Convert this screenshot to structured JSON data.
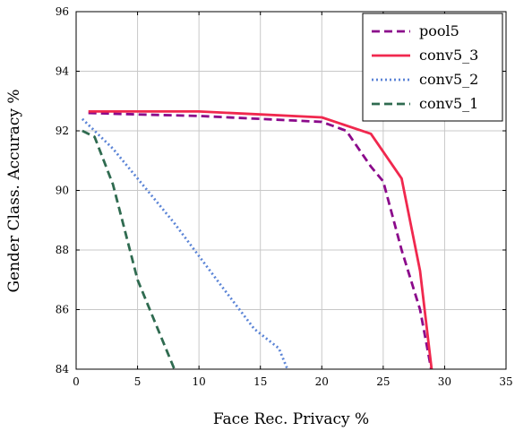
{
  "chart_data": {
    "type": "line",
    "title": "",
    "xlabel": "Face Rec. Privacy %",
    "ylabel": "Gender Class. Accuracy %",
    "xlim": [
      0,
      35
    ],
    "ylim": [
      84,
      96
    ],
    "xticks": [
      0,
      5,
      10,
      15,
      20,
      25,
      30,
      35
    ],
    "yticks": [
      84,
      86,
      88,
      90,
      92,
      94,
      96
    ],
    "grid": true,
    "legend_position": "top-right",
    "series": [
      {
        "name": "pool5",
        "color": "#8b0a8b",
        "dash": "dashed",
        "x": [
          1.0,
          5.0,
          10.0,
          15.0,
          20.0,
          22.0,
          24.0,
          25.0,
          26.5,
          28.0,
          29.0
        ],
        "y": [
          92.6,
          92.55,
          92.5,
          92.4,
          92.3,
          92.0,
          90.8,
          90.3,
          88.0,
          86.0,
          83.8
        ]
      },
      {
        "name": "conv5_3",
        "color": "#f0284e",
        "dash": "solid",
        "x": [
          1.0,
          5.0,
          10.0,
          15.0,
          20.0,
          24.0,
          26.5,
          28.0,
          29.0
        ],
        "y": [
          92.65,
          92.65,
          92.65,
          92.55,
          92.45,
          91.9,
          90.4,
          87.3,
          83.8
        ]
      },
      {
        "name": "conv5_2",
        "color": "#5b84d6",
        "dash": "dotted",
        "x": [
          0.5,
          3.0,
          5.0,
          8.0,
          10.0,
          12.0,
          14.5,
          16.5,
          17.3
        ],
        "y": [
          92.4,
          91.4,
          90.4,
          88.9,
          87.8,
          86.7,
          85.35,
          84.7,
          83.9
        ]
      },
      {
        "name": "conv5_1",
        "color": "#2f6b50",
        "dash": "dashed",
        "x": [
          0.5,
          1.5,
          3.0,
          4.0,
          5.0,
          6.5,
          8.0
        ],
        "y": [
          92.0,
          91.8,
          90.2,
          88.6,
          87.0,
          85.5,
          84.0
        ]
      }
    ]
  }
}
